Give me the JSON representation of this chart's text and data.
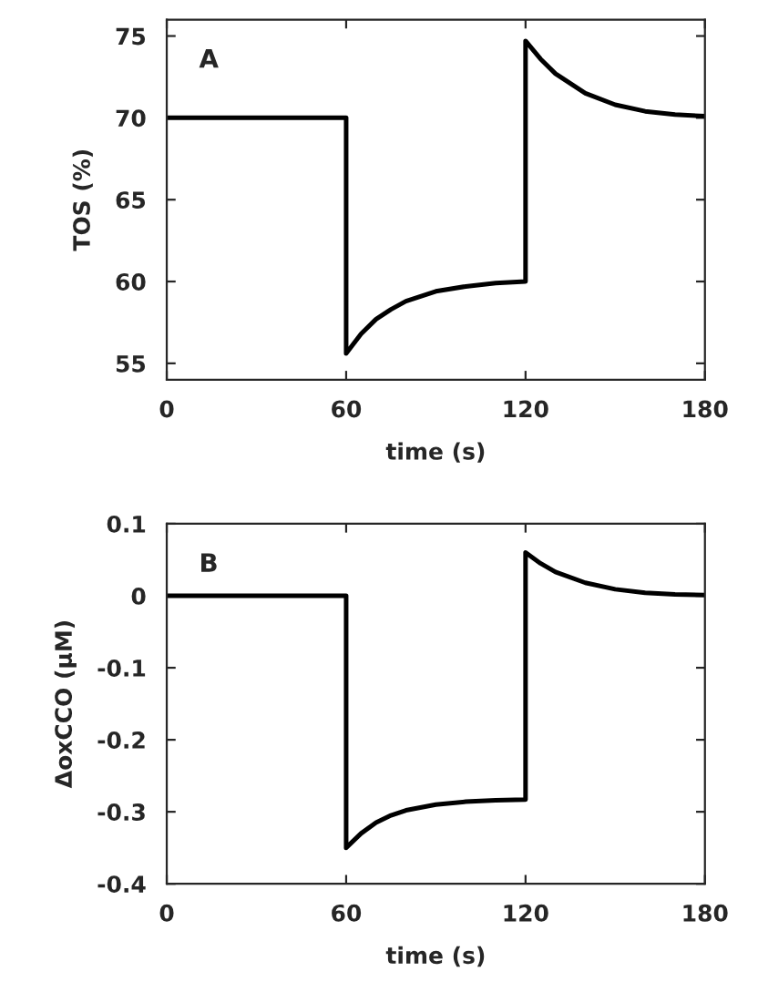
{
  "chart_data": [
    {
      "type": "line",
      "xlabel": "time (s)",
      "ylabel": "TOS (%)",
      "annotations": [
        "A"
      ],
      "xlim": [
        0,
        180
      ],
      "xticks": [
        0,
        60,
        120,
        180
      ],
      "ylim": [
        54,
        76
      ],
      "yticks": [
        55,
        60,
        65,
        70,
        75
      ],
      "series": [
        {
          "color": "#000000",
          "x": [
            0,
            60,
            60,
            65,
            70,
            75,
            80,
            90,
            100,
            110,
            120,
            120,
            125,
            130,
            140,
            150,
            160,
            170,
            180
          ],
          "values": [
            70,
            70,
            55.6,
            56.8,
            57.7,
            58.3,
            58.8,
            59.4,
            59.7,
            59.9,
            60.0,
            74.7,
            73.6,
            72.7,
            71.5,
            70.8,
            70.4,
            70.2,
            70.1
          ]
        }
      ]
    },
    {
      "type": "line",
      "xlabel": "time (s)",
      "ylabel": "ΔoxCCO (μM)",
      "annotations": [
        "B"
      ],
      "xlim": [
        0,
        180
      ],
      "xticks": [
        0,
        60,
        120,
        180
      ],
      "ylim": [
        -0.4,
        0.1
      ],
      "yticks": [
        -0.4,
        -0.3,
        -0.2,
        -0.1,
        0,
        0.1
      ],
      "series": [
        {
          "color": "#000000",
          "x": [
            0,
            60,
            60,
            65,
            70,
            75,
            80,
            90,
            100,
            110,
            120,
            120,
            125,
            130,
            140,
            150,
            160,
            170,
            180
          ],
          "values": [
            0,
            0,
            -0.35,
            -0.33,
            -0.315,
            -0.305,
            -0.298,
            -0.29,
            -0.286,
            -0.284,
            -0.283,
            0.06,
            0.045,
            0.033,
            0.018,
            0.009,
            0.004,
            0.002,
            0.001
          ]
        }
      ]
    }
  ]
}
